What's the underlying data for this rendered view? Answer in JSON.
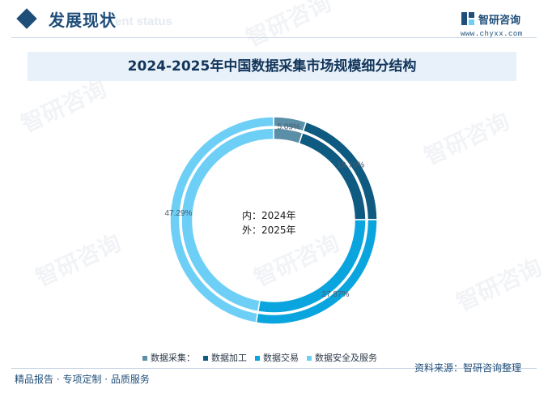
{
  "header": {
    "section_title": "发展现状",
    "section_subtitle": "ent status",
    "brand_name": "智研咨询",
    "brand_url": "www.chyxx.com"
  },
  "watermark_text": "智研咨询",
  "center_label": {
    "line1": "内：2024年",
    "line2": "外：2025年"
  },
  "footer": {
    "left_text": "精品报告 · 专项定制 · 品质服务",
    "source_text": "资料来源：智研咨询整理"
  },
  "colors": {
    "primary": "#1f4e79",
    "collect": "#5b8fa8",
    "process": "#0f5a80",
    "trade": "#0aa5de",
    "security": "#6ecff6"
  },
  "chart_data": {
    "type": "pie",
    "title": "2024-2025年中国数据采集市场规模细分结构",
    "categories": [
      "数据采集：",
      "数据加工",
      "数据交易",
      "数据安全及服务"
    ],
    "series": [
      {
        "name": "2024年",
        "values": [
          5.09,
          19.75,
          27.87,
          47.29
        ]
      },
      {
        "name": "2025年",
        "values": [
          5.09,
          19.75,
          27.87,
          47.29
        ]
      }
    ],
    "data_labels": [
      "5.09%",
      "19.75%",
      "27.87%",
      "47.29%"
    ],
    "legend_position": "bottom"
  }
}
